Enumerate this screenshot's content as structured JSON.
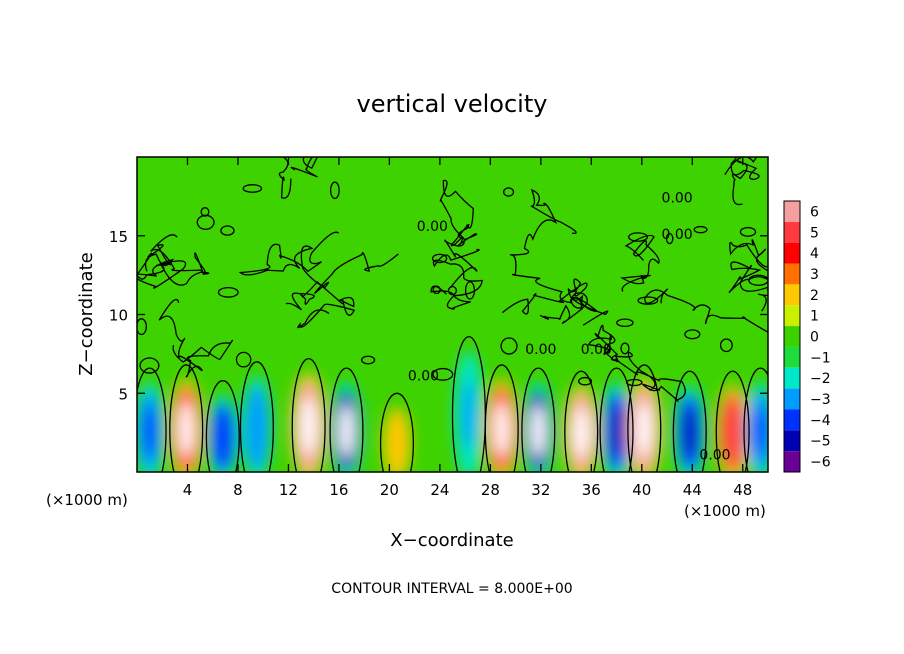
{
  "chart_data": {
    "type": "heatmap",
    "title": "vertical velocity",
    "xlabel": "X−coordinate",
    "ylabel": "Z−coordinate",
    "x_unit_left": "(×1000 m)",
    "x_unit_right": "(×1000 m)",
    "footer": "CONTOUR INTERVAL = 8.000E+00",
    "xlim": [
      0,
      50
    ],
    "ylim": [
      0,
      20
    ],
    "x_ticks": [
      "4",
      "8",
      "12",
      "16",
      "20",
      "24",
      "28",
      "32",
      "36",
      "40",
      "44",
      "48"
    ],
    "x_tick_values": [
      4,
      8,
      12,
      16,
      20,
      24,
      28,
      32,
      36,
      40,
      44,
      48
    ],
    "y_ticks": [
      "5",
      "10",
      "15"
    ],
    "y_tick_values": [
      5,
      10,
      15
    ],
    "colorbar": {
      "levels": [
        "6",
        "5",
        "4",
        "3",
        "2",
        "1",
        "0",
        "−1",
        "−2",
        "−3",
        "−4",
        "−5",
        "−6"
      ],
      "values": [
        6,
        5,
        4,
        3,
        2,
        1,
        0,
        -1,
        -2,
        -3,
        -4,
        -5,
        -6
      ],
      "colors": [
        "#f4a0a0",
        "#ff3a40",
        "#ff0000",
        "#ff7000",
        "#ffc800",
        "#c8f000",
        "#3cd200",
        "#1edc3c",
        "#00e6c8",
        "#009cff",
        "#0032ff",
        "#0000b4",
        "#6a0096"
      ]
    },
    "contour_labels": [
      {
        "text": "0.00",
        "x": 32,
        "y": 7.5
      },
      {
        "text": "0.00",
        "x": 36.4,
        "y": 7.5
      },
      {
        "text": "0.00",
        "x": 42.8,
        "y": 17.1
      },
      {
        "text": "0.00",
        "x": 42.8,
        "y": 14.8
      },
      {
        "text": "0.00",
        "x": 23.4,
        "y": 15.3
      },
      {
        "text": "0.00",
        "x": 22.7,
        "y": 5.8
      },
      {
        "text": "0.00",
        "x": 45.8,
        "y": 0.8
      }
    ],
    "cells": [
      {
        "x": 1.0,
        "z": 2.6,
        "v": -4
      },
      {
        "x": 3.9,
        "z": 2.7,
        "v": 5.5
      },
      {
        "x": 6.8,
        "z": 2.2,
        "v": -4.5
      },
      {
        "x": 9.5,
        "z": 2.8,
        "v": -3.5
      },
      {
        "x": 13.6,
        "z": 2.9,
        "v": 6.5
      },
      {
        "x": 16.6,
        "z": 2.6,
        "v": -5.5
      },
      {
        "x": 20.6,
        "z": 1.8,
        "v": 2
      },
      {
        "x": 26.3,
        "z": 3.6,
        "v": -3
      },
      {
        "x": 28.9,
        "z": 2.7,
        "v": 5.5
      },
      {
        "x": 31.8,
        "z": 2.6,
        "v": -5.5
      },
      {
        "x": 35.2,
        "z": 2.5,
        "v": 6
      },
      {
        "x": 38.0,
        "z": 2.6,
        "v": -5
      },
      {
        "x": 40.2,
        "z": 2.7,
        "v": 6
      },
      {
        "x": 43.8,
        "z": 2.5,
        "v": -5
      },
      {
        "x": 47.2,
        "z": 2.5,
        "v": 5
      },
      {
        "x": 49.4,
        "z": 2.6,
        "v": -4
      }
    ]
  }
}
